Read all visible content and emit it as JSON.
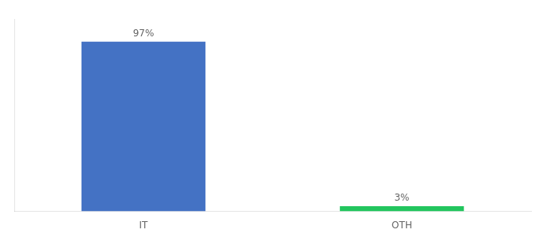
{
  "chart_data": {
    "type": "bar",
    "categories": [
      "IT",
      "OTH"
    ],
    "values": [
      97,
      3
    ],
    "value_labels": [
      "97%",
      "3%"
    ],
    "colors": [
      "#4472c4",
      "#22c55e"
    ],
    "ylim": [
      0,
      110
    ],
    "tick_labels": "x",
    "data_labels": true,
    "grid": false
  }
}
